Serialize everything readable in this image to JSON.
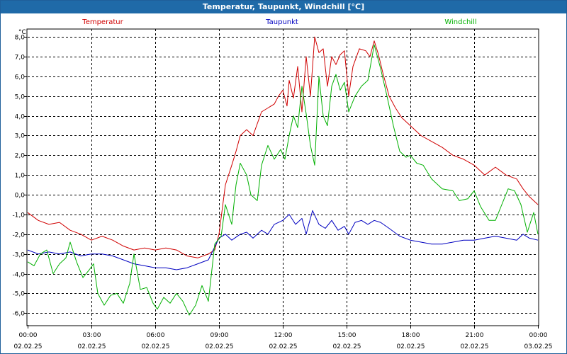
{
  "chart_data": {
    "type": "line",
    "title": "Temperatur, Taupunkt, Windchill [°C]",
    "ylabel": "°C",
    "ylim": [
      -6.6,
      8.4
    ],
    "yticks": [
      -6.0,
      -5.0,
      -4.0,
      -3.0,
      -2.0,
      -1.0,
      0.0,
      1.0,
      2.0,
      3.0,
      4.0,
      5.0,
      6.0,
      7.0,
      8.0
    ],
    "ytick_labels": [
      "-6,0",
      "-5,0",
      "-4,0",
      "-3,0",
      "-2,0",
      "-1,0",
      "0,0",
      "1,0",
      "2,0",
      "3,0",
      "4,0",
      "5,0",
      "6,0",
      "7,0",
      "8,0"
    ],
    "xlim_hours": [
      0,
      24
    ],
    "xticks": [
      {
        "hour": 0,
        "time": "00:00",
        "date": "02.02.25"
      },
      {
        "hour": 3,
        "time": "03:00",
        "date": "02.02.25"
      },
      {
        "hour": 6,
        "time": "06:00",
        "date": "02.02.25"
      },
      {
        "hour": 9,
        "time": "09:00",
        "date": "02.02.25"
      },
      {
        "hour": 12,
        "time": "12:00",
        "date": "02.02.25"
      },
      {
        "hour": 15,
        "time": "15:00",
        "date": "02.02.25"
      },
      {
        "hour": 18,
        "time": "18:00",
        "date": "02.02.25"
      },
      {
        "hour": 21,
        "time": "21:00",
        "date": "02.02.25"
      },
      {
        "hour": 24,
        "time": "00:00",
        "date": "03.02.25"
      }
    ],
    "grid": true,
    "series": [
      {
        "name": "Temperatur",
        "color": "#d00000",
        "points": [
          [
            0,
            -0.9
          ],
          [
            0.5,
            -1.3
          ],
          [
            1,
            -1.5
          ],
          [
            1.5,
            -1.4
          ],
          [
            2,
            -1.8
          ],
          [
            2.5,
            -2.0
          ],
          [
            3,
            -2.3
          ],
          [
            3.5,
            -2.1
          ],
          [
            4,
            -2.3
          ],
          [
            4.5,
            -2.6
          ],
          [
            5,
            -2.8
          ],
          [
            5.5,
            -2.7
          ],
          [
            6,
            -2.8
          ],
          [
            6.5,
            -2.7
          ],
          [
            7,
            -2.8
          ],
          [
            7.5,
            -3.1
          ],
          [
            8,
            -3.2
          ],
          [
            8.5,
            -3.0
          ],
          [
            8.8,
            -2.8
          ],
          [
            9,
            -2.0
          ],
          [
            9.3,
            0.5
          ],
          [
            9.6,
            1.5
          ],
          [
            9.8,
            2.2
          ],
          [
            10,
            3.0
          ],
          [
            10.3,
            3.3
          ],
          [
            10.6,
            3.0
          ],
          [
            11,
            4.2
          ],
          [
            11.3,
            4.4
          ],
          [
            11.6,
            4.6
          ],
          [
            11.8,
            5.0
          ],
          [
            12,
            5.3
          ],
          [
            12.2,
            4.5
          ],
          [
            12.3,
            5.8
          ],
          [
            12.5,
            4.9
          ],
          [
            12.7,
            6.5
          ],
          [
            12.9,
            4.2
          ],
          [
            13.1,
            7.0
          ],
          [
            13.3,
            5.0
          ],
          [
            13.5,
            8.0
          ],
          [
            13.7,
            7.2
          ],
          [
            13.9,
            7.4
          ],
          [
            14.1,
            5.5
          ],
          [
            14.3,
            7.0
          ],
          [
            14.5,
            6.6
          ],
          [
            14.7,
            7.1
          ],
          [
            14.9,
            7.3
          ],
          [
            15.1,
            5.0
          ],
          [
            15.3,
            6.5
          ],
          [
            15.6,
            7.4
          ],
          [
            15.9,
            7.3
          ],
          [
            16.1,
            7.0
          ],
          [
            16.3,
            7.8
          ],
          [
            16.5,
            7.1
          ],
          [
            16.7,
            6.2
          ],
          [
            17,
            5.0
          ],
          [
            17.3,
            4.4
          ],
          [
            17.6,
            3.9
          ],
          [
            18,
            3.5
          ],
          [
            18.5,
            3.0
          ],
          [
            19,
            2.7
          ],
          [
            19.5,
            2.4
          ],
          [
            20,
            2.0
          ],
          [
            20.5,
            1.8
          ],
          [
            21,
            1.5
          ],
          [
            21.5,
            1.0
          ],
          [
            22,
            1.4
          ],
          [
            22.5,
            1.0
          ],
          [
            23,
            0.8
          ],
          [
            23.3,
            0.3
          ],
          [
            23.6,
            -0.1
          ],
          [
            24,
            -0.5
          ]
        ]
      },
      {
        "name": "Taupunkt",
        "color": "#0000c0",
        "points": [
          [
            0,
            -2.8
          ],
          [
            0.5,
            -3.0
          ],
          [
            1,
            -2.9
          ],
          [
            1.5,
            -3.0
          ],
          [
            2,
            -2.9
          ],
          [
            2.5,
            -3.1
          ],
          [
            3,
            -3.0
          ],
          [
            3.5,
            -3.0
          ],
          [
            4,
            -3.1
          ],
          [
            4.5,
            -3.3
          ],
          [
            5,
            -3.5
          ],
          [
            5.5,
            -3.6
          ],
          [
            6,
            -3.7
          ],
          [
            6.5,
            -3.7
          ],
          [
            7,
            -3.8
          ],
          [
            7.5,
            -3.7
          ],
          [
            8,
            -3.5
          ],
          [
            8.5,
            -3.3
          ],
          [
            9,
            -2.2
          ],
          [
            9.3,
            -2.0
          ],
          [
            9.6,
            -2.3
          ],
          [
            10,
            -2.0
          ],
          [
            10.3,
            -1.9
          ],
          [
            10.6,
            -2.2
          ],
          [
            11,
            -1.8
          ],
          [
            11.3,
            -2.0
          ],
          [
            11.6,
            -1.5
          ],
          [
            12,
            -1.3
          ],
          [
            12.3,
            -1.0
          ],
          [
            12.6,
            -1.5
          ],
          [
            12.9,
            -1.2
          ],
          [
            13.1,
            -2.0
          ],
          [
            13.4,
            -0.8
          ],
          [
            13.7,
            -1.5
          ],
          [
            14,
            -1.7
          ],
          [
            14.3,
            -1.3
          ],
          [
            14.6,
            -1.8
          ],
          [
            14.9,
            -1.6
          ],
          [
            15.1,
            -2.0
          ],
          [
            15.4,
            -1.4
          ],
          [
            15.7,
            -1.3
          ],
          [
            16,
            -1.5
          ],
          [
            16.3,
            -1.3
          ],
          [
            16.6,
            -1.4
          ],
          [
            17,
            -1.7
          ],
          [
            17.5,
            -2.1
          ],
          [
            18,
            -2.3
          ],
          [
            18.5,
            -2.4
          ],
          [
            19,
            -2.5
          ],
          [
            19.5,
            -2.5
          ],
          [
            20,
            -2.4
          ],
          [
            20.5,
            -2.3
          ],
          [
            21,
            -2.3
          ],
          [
            21.5,
            -2.2
          ],
          [
            22,
            -2.1
          ],
          [
            22.5,
            -2.2
          ],
          [
            23,
            -2.3
          ],
          [
            23.3,
            -2.0
          ],
          [
            23.6,
            -2.2
          ],
          [
            24,
            -2.3
          ]
        ]
      },
      {
        "name": "Windchill",
        "color": "#00b000",
        "points": [
          [
            0,
            -3.4
          ],
          [
            0.3,
            -3.6
          ],
          [
            0.6,
            -3.0
          ],
          [
            0.9,
            -2.8
          ],
          [
            1.2,
            -4.0
          ],
          [
            1.5,
            -3.5
          ],
          [
            1.8,
            -3.2
          ],
          [
            2,
            -2.4
          ],
          [
            2.3,
            -3.4
          ],
          [
            2.6,
            -4.2
          ],
          [
            2.9,
            -3.8
          ],
          [
            3.1,
            -3.5
          ],
          [
            3.3,
            -5.0
          ],
          [
            3.6,
            -5.6
          ],
          [
            3.9,
            -5.1
          ],
          [
            4.2,
            -5.0
          ],
          [
            4.5,
            -5.5
          ],
          [
            4.8,
            -4.5
          ],
          [
            5,
            -3.0
          ],
          [
            5.3,
            -4.8
          ],
          [
            5.6,
            -4.7
          ],
          [
            5.9,
            -5.5
          ],
          [
            6.1,
            -5.8
          ],
          [
            6.4,
            -5.2
          ],
          [
            6.7,
            -5.5
          ],
          [
            7,
            -5.0
          ],
          [
            7.3,
            -5.4
          ],
          [
            7.6,
            -6.1
          ],
          [
            7.9,
            -5.6
          ],
          [
            8.2,
            -4.6
          ],
          [
            8.5,
            -5.4
          ],
          [
            8.8,
            -2.5
          ],
          [
            9.1,
            -2.1
          ],
          [
            9.3,
            -0.5
          ],
          [
            9.6,
            -1.5
          ],
          [
            9.8,
            0.5
          ],
          [
            10,
            1.6
          ],
          [
            10.3,
            1.0
          ],
          [
            10.5,
            0.0
          ],
          [
            10.8,
            -0.3
          ],
          [
            11,
            1.5
          ],
          [
            11.3,
            2.5
          ],
          [
            11.6,
            1.8
          ],
          [
            11.9,
            2.3
          ],
          [
            12.1,
            1.8
          ],
          [
            12.3,
            3.0
          ],
          [
            12.5,
            4.0
          ],
          [
            12.7,
            3.4
          ],
          [
            12.9,
            5.5
          ],
          [
            13.1,
            4.1
          ],
          [
            13.3,
            2.5
          ],
          [
            13.5,
            1.5
          ],
          [
            13.7,
            6.0
          ],
          [
            13.9,
            4.0
          ],
          [
            14.1,
            3.5
          ],
          [
            14.3,
            5.5
          ],
          [
            14.5,
            6.1
          ],
          [
            14.7,
            5.3
          ],
          [
            14.9,
            5.7
          ],
          [
            15.1,
            4.2
          ],
          [
            15.4,
            5.0
          ],
          [
            15.7,
            5.5
          ],
          [
            16,
            5.8
          ],
          [
            16.3,
            7.6
          ],
          [
            16.6,
            6.4
          ],
          [
            16.9,
            5.0
          ],
          [
            17.2,
            3.5
          ],
          [
            17.5,
            2.2
          ],
          [
            17.8,
            1.9
          ],
          [
            18,
            2.0
          ],
          [
            18.3,
            1.6
          ],
          [
            18.6,
            1.5
          ],
          [
            19,
            0.8
          ],
          [
            19.5,
            0.3
          ],
          [
            20,
            0.2
          ],
          [
            20.3,
            -0.3
          ],
          [
            20.7,
            -0.2
          ],
          [
            21,
            0.2
          ],
          [
            21.3,
            -0.6
          ],
          [
            21.7,
            -1.3
          ],
          [
            22,
            -1.3
          ],
          [
            22.3,
            -0.5
          ],
          [
            22.6,
            0.3
          ],
          [
            22.9,
            0.2
          ],
          [
            23.2,
            -0.5
          ],
          [
            23.5,
            -1.9
          ],
          [
            23.8,
            -0.9
          ],
          [
            24,
            -2.0
          ]
        ]
      }
    ]
  }
}
